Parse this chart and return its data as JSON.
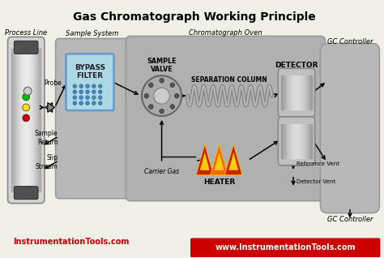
{
  "title": "Gas Chromatograph Working Principle",
  "title_fontsize": 10,
  "bg_color": "#f0efe8",
  "section_labels": [
    "Process Line",
    "Sample System",
    "Chromatograph Oven",
    "GC Controller"
  ],
  "component_labels": {
    "bypass_filter": "BYPASS\nFILTER",
    "sample_valve": "SAMPLE\nVALVE",
    "separation_column": "SEPARATION COLUMN",
    "detector": "DETECTOR",
    "heater": "HEATER",
    "probe": "Probe",
    "sample_return": "Sample\nReturn",
    "slip_stream": "Slip\nStream",
    "carrier_gas": "Carrier Gas",
    "reference_vent": "Reference Vent",
    "detector_vent": "Detector Vent",
    "gc_controller_top": "GC Controller",
    "gc_controller_bottom": "GC Controller",
    "instrumentation_top": "InstrumentationTools.com",
    "instrumentation_bottom": "www.InstrumentationTools.com"
  },
  "colors": {
    "process_line_fill": "#d4d4d4",
    "process_line_edge": "#888888",
    "process_line_cap": "#505050",
    "sample_system_fill": "#b8b8b8",
    "oven_fill": "#b0b0b0",
    "gc_controller_fill": "#b8b8b8",
    "bypass_filter_fill": "#add8e6",
    "bypass_filter_edge": "#6699cc",
    "bypass_filter_dot": "#4488bb",
    "valve_fill": "#aaaaaa",
    "valve_edge": "#666666",
    "valve_inner": "#cccccc",
    "valve_port": "#555555",
    "coil_dark": "#888888",
    "coil_light": "#dddddd",
    "detector_fill": "#c0c0c0",
    "detector_edge": "#888888",
    "heater_yellow": "#ffcc00",
    "heater_orange": "#ff6600",
    "heater_red": "#cc2200",
    "arrow_color": "#000000",
    "text_color": "#000000",
    "instrumentation_red": "#cc0000",
    "bottom_banner_bg": "#cc0000",
    "bottom_banner_text": "#ffffff",
    "dot_green": "#00bb00",
    "dot_yellow": "#ffdd00",
    "dot_red": "#cc0000",
    "title_color": "#000000",
    "bowtie_fill": "#888888",
    "section_bg": "#c8c8c0"
  }
}
